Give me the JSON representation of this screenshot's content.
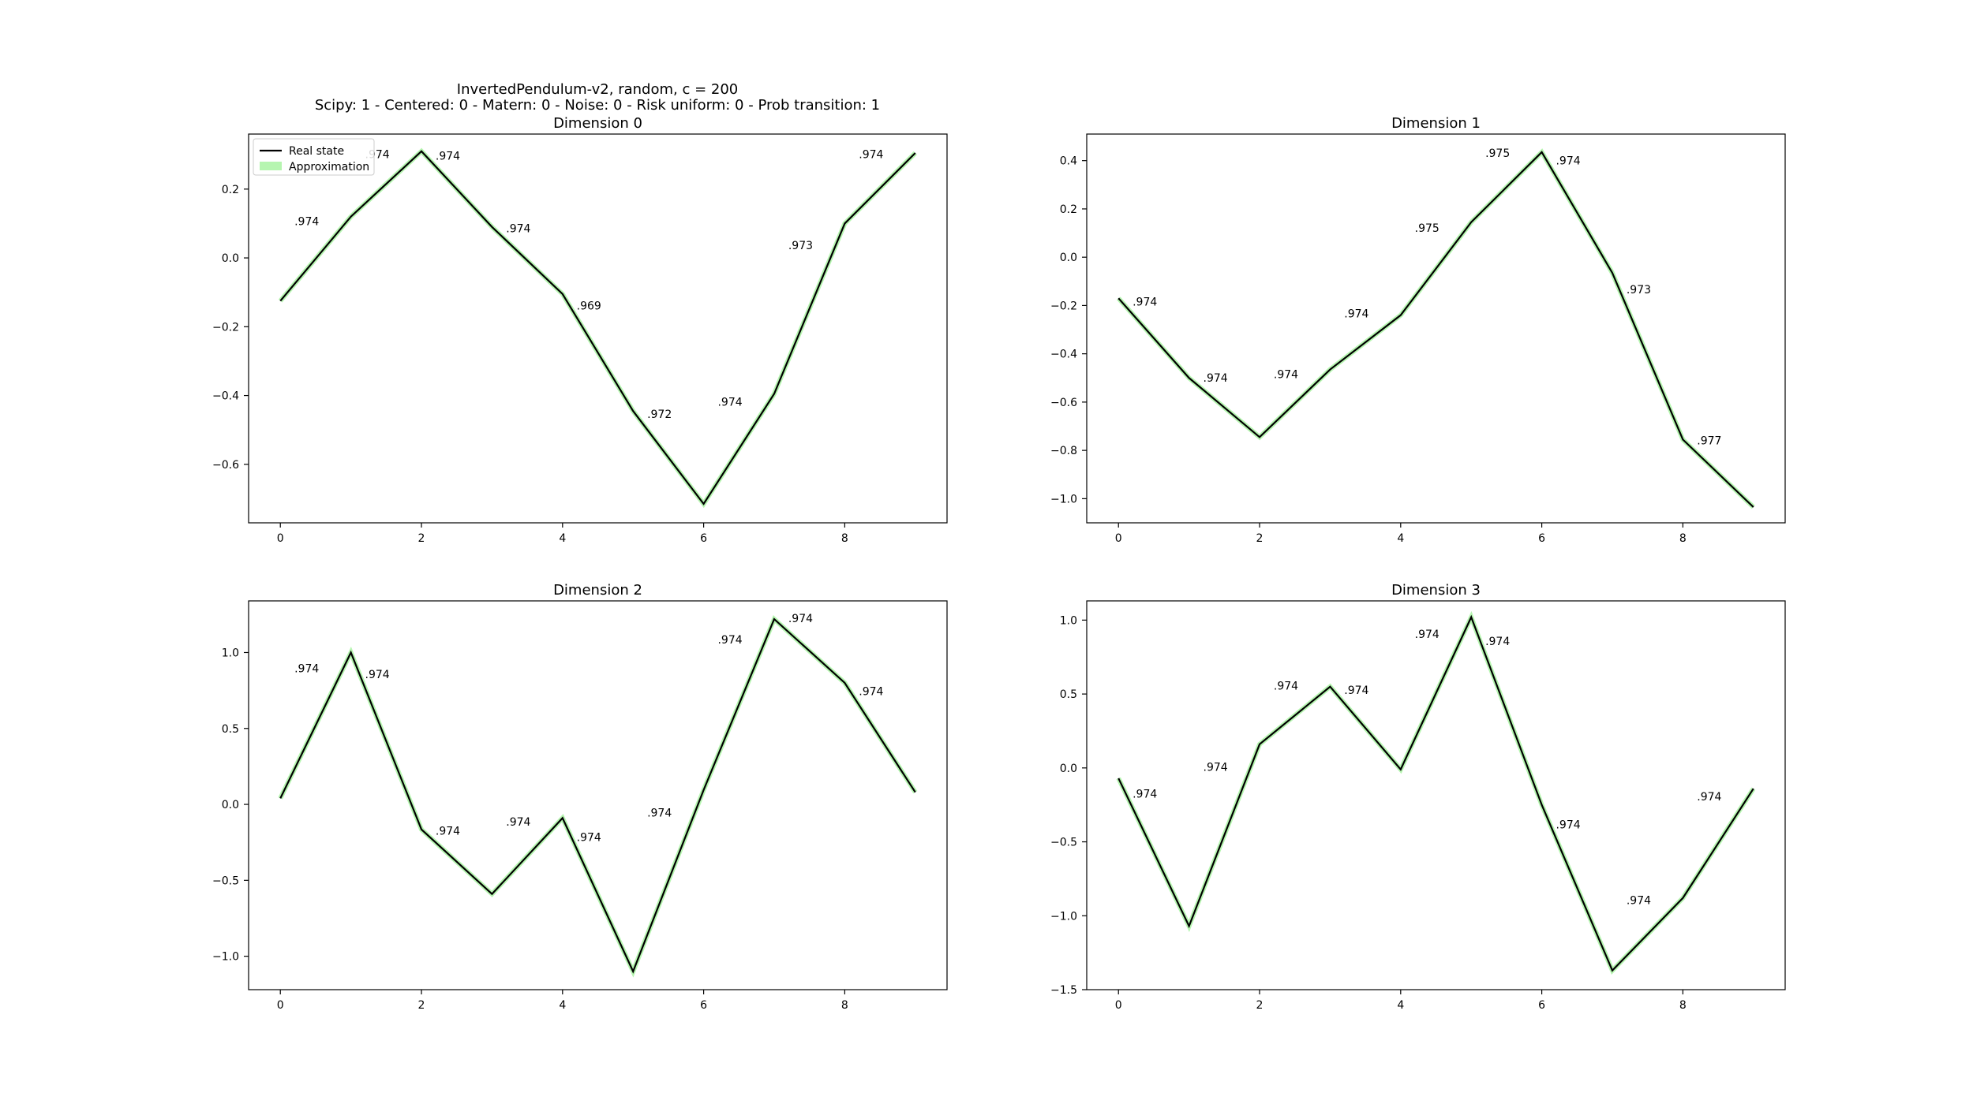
{
  "figure": {
    "title_line1": "InvertedPendulum-v2, random, c = 200",
    "title_line2": "Scipy: 1 - Centered: 0 - Matern: 0 - Noise: 0 - Risk uniform: 0 - Prob transition: 1"
  },
  "legend": {
    "real_state_label": "Real state",
    "approximation_label": "Approximation",
    "placement": "upper left (first subplot)"
  },
  "colors": {
    "real_state": "#000000",
    "approximation": "#b6f5b0",
    "axes": "#000000",
    "background": "#ffffff"
  },
  "chart_data": [
    {
      "type": "line",
      "title": "Dimension 0",
      "x": [
        0,
        1,
        2,
        3,
        4,
        5,
        6,
        7,
        8,
        9
      ],
      "series": [
        {
          "name": "Real state",
          "values": [
            -0.125,
            0.12,
            0.31,
            0.09,
            -0.105,
            -0.445,
            -0.715,
            -0.395,
            0.1,
            0.305
          ]
        },
        {
          "name": "Approximation",
          "values": [
            -0.125,
            0.12,
            0.31,
            0.09,
            -0.105,
            -0.445,
            -0.715,
            -0.395,
            0.1,
            0.305
          ]
        }
      ],
      "annotations": [
        {
          "x": 0.2,
          "y": 0.095,
          "text": ".974"
        },
        {
          "x": 1.2,
          "y": 0.29,
          "text": ".974"
        },
        {
          "x": 2.2,
          "y": 0.285,
          "text": ".974"
        },
        {
          "x": 3.2,
          "y": 0.075,
          "text": ".974"
        },
        {
          "x": 4.2,
          "y": -0.15,
          "text": ".969"
        },
        {
          "x": 5.2,
          "y": -0.465,
          "text": ".972"
        },
        {
          "x": 6.2,
          "y": -0.43,
          "text": ".974"
        },
        {
          "x": 7.2,
          "y": 0.025,
          "text": ".973"
        },
        {
          "x": 8.2,
          "y": 0.29,
          "text": ".974"
        }
      ],
      "xlim": [
        -0.45,
        9.45
      ],
      "ylim": [
        -0.77,
        0.36
      ],
      "xticks": [
        0,
        2,
        4,
        6,
        8
      ],
      "yticks": [
        0.2,
        0.0,
        -0.2,
        -0.4,
        -0.6
      ],
      "ytick_labels": [
        "0.2",
        "0.0",
        "−0.2",
        "−0.4",
        "−0.6"
      ],
      "grid": false,
      "legend": true
    },
    {
      "type": "line",
      "title": "Dimension 1",
      "x": [
        0,
        1,
        2,
        3,
        4,
        5,
        6,
        7,
        8,
        9
      ],
      "series": [
        {
          "name": "Real state",
          "values": [
            -0.17,
            -0.5,
            -0.745,
            -0.465,
            -0.24,
            0.145,
            0.435,
            -0.065,
            -0.755,
            -1.035
          ]
        },
        {
          "name": "Approximation",
          "values": [
            -0.17,
            -0.5,
            -0.745,
            -0.465,
            -0.24,
            0.145,
            0.435,
            -0.065,
            -0.755,
            -1.035
          ]
        }
      ],
      "annotations": [
        {
          "x": 0.2,
          "y": -0.2,
          "text": ".974"
        },
        {
          "x": 1.2,
          "y": -0.515,
          "text": ".974"
        },
        {
          "x": 2.2,
          "y": -0.5,
          "text": ".974"
        },
        {
          "x": 3.2,
          "y": -0.25,
          "text": ".974"
        },
        {
          "x": 4.2,
          "y": 0.105,
          "text": ".975"
        },
        {
          "x": 5.2,
          "y": 0.415,
          "text": ".975"
        },
        {
          "x": 6.2,
          "y": 0.385,
          "text": ".974"
        },
        {
          "x": 7.2,
          "y": -0.15,
          "text": ".973"
        },
        {
          "x": 8.2,
          "y": -0.775,
          "text": ".977"
        }
      ],
      "xlim": [
        -0.45,
        9.45
      ],
      "ylim": [
        -1.1,
        0.51
      ],
      "xticks": [
        0,
        2,
        4,
        6,
        8
      ],
      "yticks": [
        0.4,
        0.2,
        0.0,
        -0.2,
        -0.4,
        -0.6,
        -0.8,
        -1.0
      ],
      "ytick_labels": [
        "0.4",
        "0.2",
        "0.0",
        "−0.2",
        "−0.4",
        "−0.6",
        "−0.8",
        "−1.0"
      ],
      "grid": false,
      "legend": false
    },
    {
      "type": "line",
      "title": "Dimension 2",
      "x": [
        0,
        1,
        2,
        3,
        4,
        5,
        6,
        7,
        8,
        9
      ],
      "series": [
        {
          "name": "Real state",
          "values": [
            0.04,
            1.0,
            -0.165,
            -0.59,
            -0.09,
            -1.1,
            0.095,
            1.22,
            0.8,
            0.08
          ]
        },
        {
          "name": "Approximation",
          "values": [
            0.04,
            1.0,
            -0.165,
            -0.59,
            -0.09,
            -1.1,
            0.095,
            1.22,
            0.8,
            0.08
          ]
        }
      ],
      "annotations": [
        {
          "x": 0.2,
          "y": 0.87,
          "text": ".974"
        },
        {
          "x": 1.2,
          "y": 0.83,
          "text": ".974"
        },
        {
          "x": 2.2,
          "y": -0.2,
          "text": ".974"
        },
        {
          "x": 3.2,
          "y": -0.14,
          "text": ".974"
        },
        {
          "x": 4.2,
          "y": -0.24,
          "text": ".974"
        },
        {
          "x": 5.2,
          "y": -0.08,
          "text": ".974"
        },
        {
          "x": 6.2,
          "y": 1.06,
          "text": ".974"
        },
        {
          "x": 7.2,
          "y": 1.2,
          "text": ".974"
        },
        {
          "x": 8.2,
          "y": 0.72,
          "text": ".974"
        }
      ],
      "xlim": [
        -0.45,
        9.45
      ],
      "ylim": [
        -1.22,
        1.34
      ],
      "xticks": [
        0,
        2,
        4,
        6,
        8
      ],
      "yticks": [
        1.0,
        0.5,
        0.0,
        -0.5,
        -1.0
      ],
      "ytick_labels": [
        "1.0",
        "0.5",
        "0.0",
        "−0.5",
        "−1.0"
      ],
      "grid": false,
      "legend": false
    },
    {
      "type": "line",
      "title": "Dimension 3",
      "x": [
        0,
        1,
        2,
        3,
        4,
        5,
        6,
        7,
        8,
        9
      ],
      "series": [
        {
          "name": "Real state",
          "values": [
            -0.07,
            -1.07,
            0.16,
            0.55,
            -0.01,
            1.02,
            -0.25,
            -1.37,
            -0.88,
            -0.14
          ]
        },
        {
          "name": "Approximation",
          "values": [
            -0.07,
            -1.07,
            0.16,
            0.55,
            -0.01,
            1.02,
            -0.25,
            -1.37,
            -0.88,
            -0.14
          ]
        }
      ],
      "annotations": [
        {
          "x": 0.2,
          "y": -0.2,
          "text": ".974"
        },
        {
          "x": 1.2,
          "y": -0.02,
          "text": ".974"
        },
        {
          "x": 2.2,
          "y": 0.53,
          "text": ".974"
        },
        {
          "x": 3.2,
          "y": 0.5,
          "text": ".974"
        },
        {
          "x": 4.2,
          "y": 0.88,
          "text": ".974"
        },
        {
          "x": 5.2,
          "y": 0.83,
          "text": ".974"
        },
        {
          "x": 6.2,
          "y": -0.41,
          "text": ".974"
        },
        {
          "x": 7.2,
          "y": -0.92,
          "text": ".974"
        },
        {
          "x": 8.2,
          "y": -0.22,
          "text": ".974"
        }
      ],
      "xlim": [
        -0.45,
        9.45
      ],
      "ylim": [
        -1.5,
        1.13
      ],
      "xticks": [
        0,
        2,
        4,
        6,
        8
      ],
      "yticks": [
        1.0,
        0.5,
        0.0,
        -0.5,
        -1.0,
        -1.5
      ],
      "ytick_labels": [
        "1.0",
        "0.5",
        "0.0",
        "−0.5",
        "−1.0",
        "−1.5"
      ],
      "grid": false,
      "legend": false
    }
  ]
}
